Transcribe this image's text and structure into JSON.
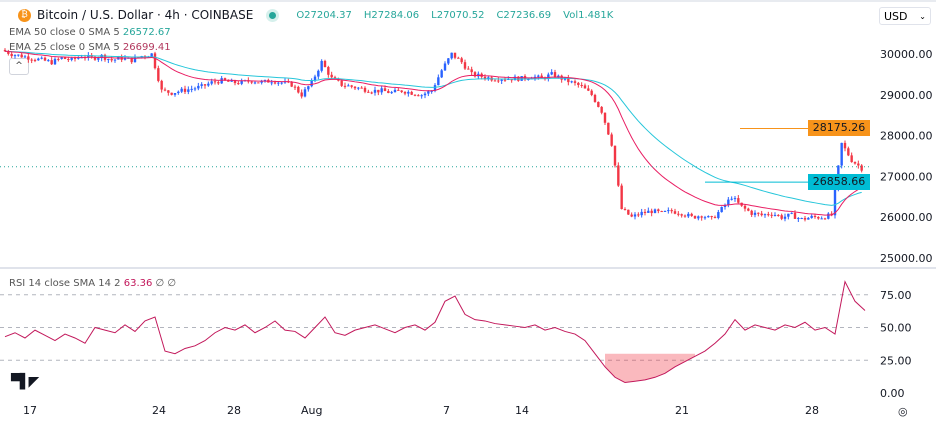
{
  "header": {
    "symbol": "Bitcoin / U.S. Dollar · 4h · COINBASE",
    "btc_glyph": "₿",
    "open": "O27204.37",
    "high": "H27284.06",
    "low": "L27070.52",
    "close": "C27236.69",
    "vol": "Vol1.481K",
    "currency": "USD"
  },
  "legends": {
    "ema50_label": "EMA 50 close 0 SMA 5",
    "ema50_value": "26572.67",
    "ema25_label": "EMA 25 close 0 SMA 5",
    "ema25_value": "26699.41",
    "rsi_label": "RSI 14 close SMA 14 2",
    "rsi_value": "63.36",
    "rsi_extra": "∅ ∅"
  },
  "price_axis": [
    "30000.00",
    "29000.00",
    "28000.00",
    "27000.00",
    "26000.00",
    "25000.00"
  ],
  "rsi_axis": [
    "75.00",
    "50.00",
    "25.00",
    "0.00"
  ],
  "time_axis": [
    "17",
    "24",
    "28",
    "Aug",
    "7",
    "14",
    "21",
    "28"
  ],
  "tags": {
    "resistance": "28175.26",
    "support": "26858.66"
  },
  "colors": {
    "up": "#2962ff",
    "down": "#f23645",
    "ema50": "#26c6da",
    "ema25": "#e91e63",
    "rsi": "#c2185b",
    "resistance": "#f7931a",
    "support": "#00bcd4"
  },
  "logo": "TV",
  "chart_data": {
    "type": "candlestick",
    "title": "Bitcoin / U.S. Dollar · 4h · COINBASE",
    "ylim": [
      25000,
      30300
    ],
    "levels": {
      "resistance": 28175.26,
      "support": 26858.66,
      "last": 27236.69
    },
    "close": [
      30100,
      30000,
      29950,
      29900,
      29850,
      29800,
      29900,
      29850,
      29950,
      29900,
      29950,
      29850,
      29900,
      29850,
      29950,
      30000,
      29100,
      29050,
      29100,
      29150,
      29200,
      29300,
      29350,
      29300,
      29300,
      29350,
      29300,
      29350,
      29300,
      29250,
      29000,
      29300,
      29800,
      29400,
      29250,
      29200,
      29150,
      29100,
      29100,
      29050,
      29100,
      29050,
      29000,
      29100,
      29600,
      30000,
      29800,
      29500,
      29450,
      29400,
      29400,
      29400,
      29400,
      29450,
      29400,
      29500,
      29400,
      29300,
      29200,
      29000,
      28600,
      27800,
      26200,
      26000,
      26100,
      26150,
      26100,
      26150,
      26100,
      26000,
      26050,
      25950,
      26200,
      26500,
      26250,
      26100,
      26050,
      26100,
      26000,
      26050,
      25950,
      26000,
      26000,
      26050,
      27800,
      27400,
      27200
    ],
    "rsi": [
      43,
      46,
      42,
      48,
      44,
      40,
      45,
      42,
      38,
      50,
      48,
      46,
      52,
      47,
      55,
      58,
      32,
      30,
      34,
      36,
      40,
      46,
      50,
      48,
      52,
      46,
      50,
      55,
      48,
      47,
      42,
      50,
      58,
      46,
      44,
      48,
      50,
      52,
      49,
      46,
      50,
      52,
      48,
      54,
      70,
      74,
      60,
      56,
      55,
      53,
      52,
      51,
      50,
      52,
      48,
      50,
      47,
      45,
      40,
      30,
      20,
      12,
      8,
      9,
      10,
      12,
      15,
      20,
      24,
      28,
      32,
      38,
      45,
      56,
      48,
      52,
      50,
      48,
      52,
      50,
      54,
      48,
      50,
      45,
      85,
      70,
      63
    ]
  }
}
